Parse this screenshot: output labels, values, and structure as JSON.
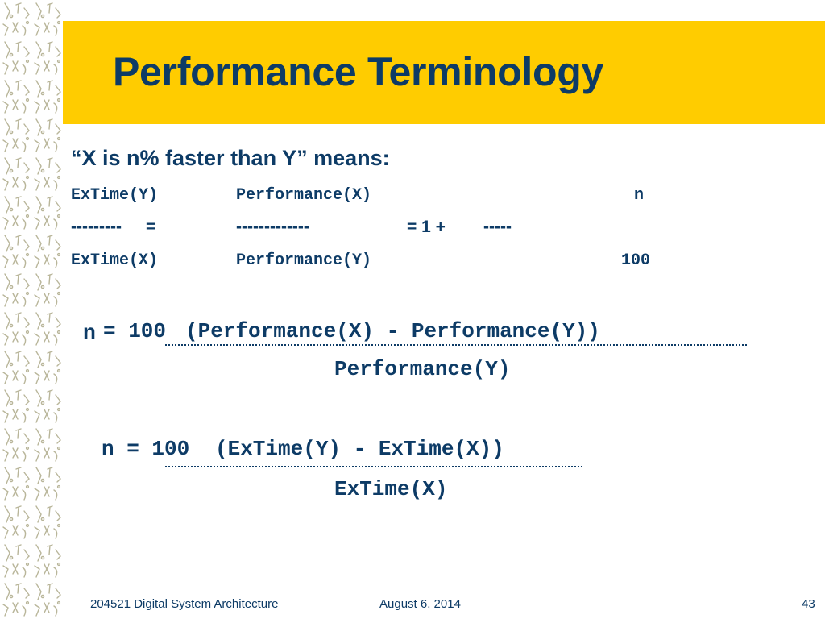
{
  "title": "Performance Terminology",
  "intro": "“X is n% faster than Y”  means:",
  "ratio": {
    "num_left": "ExTime(Y)",
    "num_mid": "Performance(X)",
    "num_right": "n",
    "bar_left": "---------",
    "eq1": "=",
    "bar_mid": "-------------",
    "eq2": "= 1 +",
    "bar_right": "-----",
    "den_left": "ExTime(X)",
    "den_mid": "Performance(Y)",
    "den_right": "100"
  },
  "formula1": {
    "n": "n",
    "equals": "= 100",
    "numerator": "(Performance(X) - Performance(Y))",
    "denominator": "Performance(Y)"
  },
  "formula2": {
    "lhs": "n = 100",
    "numerator": "(ExTime(Y) - ExTime(X))",
    "denominator": "ExTime(X)"
  },
  "footer": {
    "course": "204521 Digital System Architecture",
    "date": "August 6, 2014",
    "page": "43"
  },
  "colors": {
    "title_bar": "#FFCC00",
    "text": "#0D3B66"
  }
}
